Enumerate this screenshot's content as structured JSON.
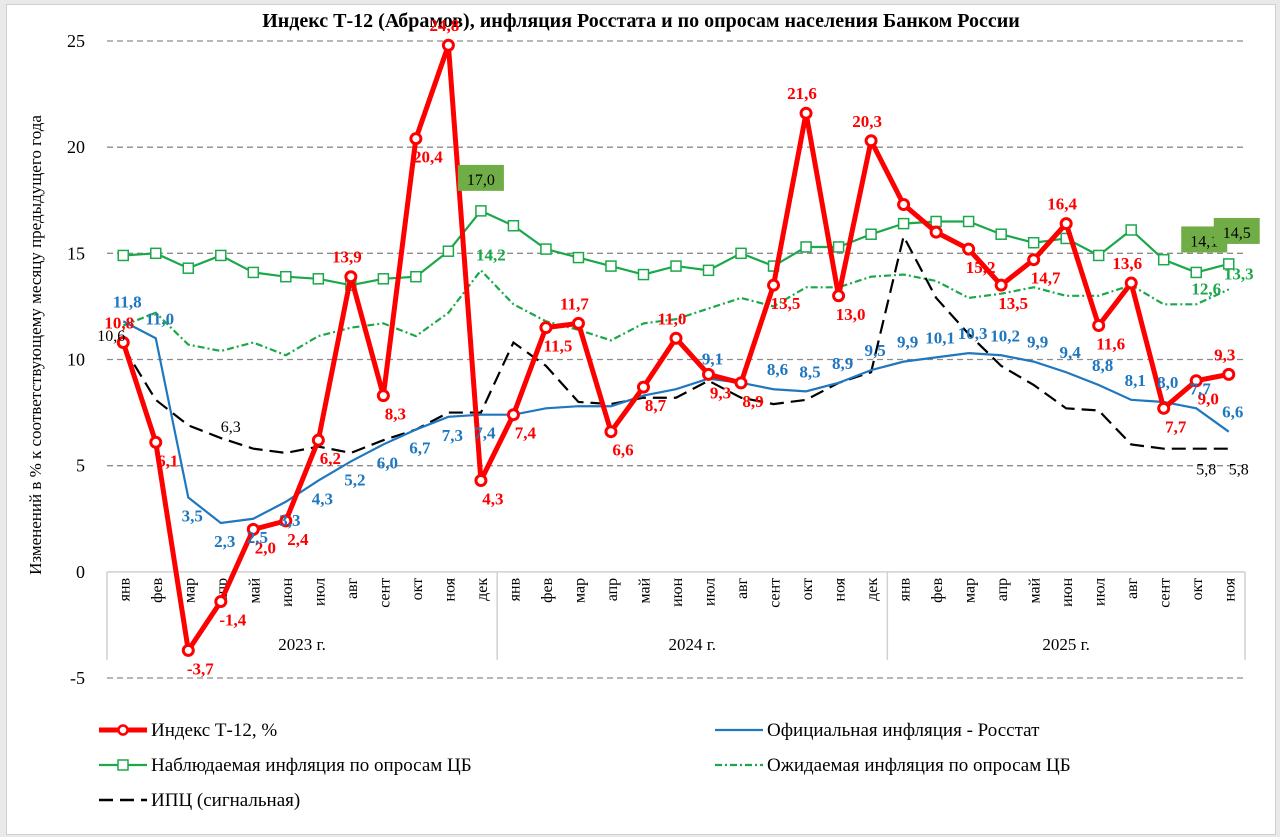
{
  "chart_data": {
    "type": "line",
    "title": "Индекс Т-12 (Абрамов), инфляция Росстата и по опросам населения Банком России",
    "ylabel": "Изменений в % к соответствующему месяцу предыдущего года",
    "xlabel": "",
    "ylim": [
      -5,
      25
    ],
    "yticks": [
      -5,
      0,
      5,
      10,
      15,
      20,
      25
    ],
    "grid": "horizontal-dashed",
    "legend_position": "bottom",
    "categories": [
      "янв",
      "фев",
      "мар",
      "апр",
      "май",
      "июн",
      "июл",
      "авг",
      "сент",
      "окт",
      "ноя",
      "дек",
      "янв",
      "фев",
      "мар",
      "апр",
      "май",
      "июн",
      "июл",
      "авг",
      "сент",
      "окт",
      "ноя",
      "дек",
      "янв",
      "фев",
      "мар",
      "апр",
      "май",
      "июн",
      "июл",
      "авг",
      "сент",
      "окт",
      "ноя"
    ],
    "year_groups": [
      {
        "label": "2023 г.",
        "count": 12
      },
      {
        "label": "2024 г.",
        "count": 12
      },
      {
        "label": "2025 г.",
        "count": 11
      }
    ],
    "series": [
      {
        "name": "Индекс Т-12, %",
        "color": "#ff0000",
        "style": "thick-line-circle-markers",
        "values": [
          10.8,
          6.1,
          -3.7,
          -1.4,
          2.0,
          2.4,
          6.2,
          13.9,
          8.3,
          20.4,
          24.8,
          4.3,
          7.4,
          11.5,
          11.7,
          6.6,
          8.7,
          11.0,
          9.3,
          8.9,
          13.5,
          21.6,
          13.0,
          20.3,
          17.3,
          16.0,
          15.2,
          13.5,
          14.7,
          16.4,
          11.6,
          13.6,
          7.7,
          9.0,
          9.3
        ],
        "labels": [
          "10,8",
          "6,1",
          "-3,7",
          "-1,4",
          "2,0",
          "2,4",
          "6,2",
          "13,9",
          "8,3",
          "20,4",
          "24,8",
          "4,3",
          "7,4",
          "11,5",
          "11,7",
          "6,6",
          "8,7",
          "11,0",
          "9,3",
          "8,9",
          "13,5",
          "21,6",
          "13,0",
          "20,3",
          "",
          "",
          "15,2",
          "13,5",
          "14,7",
          "16,4",
          "11,6",
          "13,6",
          "7,7",
          "9,0",
          "9,3"
        ]
      },
      {
        "name": "Официальная инфляция - Росстат",
        "color": "#1f77c0",
        "style": "thin-line",
        "values": [
          11.8,
          11.0,
          3.5,
          2.3,
          2.5,
          3.3,
          4.3,
          5.2,
          6.0,
          6.7,
          7.3,
          7.4,
          7.4,
          7.7,
          7.8,
          7.8,
          8.3,
          8.6,
          9.1,
          8.9,
          8.6,
          8.5,
          8.9,
          9.5,
          9.9,
          10.1,
          10.3,
          10.2,
          9.9,
          9.4,
          8.8,
          8.1,
          8.0,
          7.7,
          6.6
        ],
        "labels": [
          "11,8",
          "11,0",
          "3,5",
          "2,3",
          "2,5",
          "3,3",
          "4,3",
          "5,2",
          "6,0",
          "6,7",
          "7,3",
          "7,4",
          "",
          "",
          "",
          "",
          "",
          "",
          "9,1",
          "",
          "8,6",
          "8,5",
          "8,9",
          "9,5",
          "9,9",
          "10,1",
          "10,3",
          "10,2",
          "9,9",
          "9,4",
          "8,8",
          "8,1",
          "8,0",
          "7,7",
          "6,6"
        ]
      },
      {
        "name": "Наблюдаемая инфляция по опросам ЦБ",
        "color": "#1aa84a",
        "style": "line-square-markers",
        "values": [
          14.9,
          15.0,
          14.3,
          14.9,
          14.1,
          13.9,
          13.8,
          13.5,
          13.8,
          13.9,
          15.1,
          17.0,
          16.3,
          15.2,
          14.8,
          14.4,
          14.0,
          14.4,
          14.2,
          15.0,
          14.4,
          15.3,
          15.3,
          15.9,
          16.4,
          16.5,
          16.5,
          15.9,
          15.5,
          15.7,
          14.9,
          16.1,
          14.7,
          14.1,
          14.5
        ],
        "highlight_labels": [
          {
            "index": 11,
            "label": "17,0",
            "bg": "#70ad47"
          },
          {
            "index": 33,
            "label": "14,1",
            "bg": "#70ad47"
          },
          {
            "index": 34,
            "label": "14,5",
            "bg": "#70ad47"
          }
        ]
      },
      {
        "name": "Ожидаемая инфляция по опросам ЦБ",
        "color": "#1aa84a",
        "style": "dash-dot",
        "values": [
          11.6,
          12.2,
          10.7,
          10.4,
          10.8,
          10.2,
          11.1,
          11.5,
          11.7,
          11.1,
          12.2,
          14.2,
          12.6,
          11.8,
          11.4,
          10.9,
          11.7,
          11.9,
          12.4,
          12.9,
          12.5,
          13.4,
          13.4,
          13.9,
          14.0,
          13.7,
          12.9,
          13.1,
          13.4,
          13.0,
          13.0,
          13.5,
          12.6,
          12.6,
          13.3
        ],
        "labels": {
          "11": "14,2",
          "33": "12,6",
          "34": "13,3"
        }
      },
      {
        "name": "ИПЦ (сигнальная)",
        "color": "#000000",
        "style": "long-dash",
        "values": [
          10.6,
          8.1,
          6.9,
          6.3,
          5.8,
          5.6,
          5.9,
          5.6,
          6.2,
          6.7,
          7.5,
          7.5,
          10.8,
          9.7,
          8.0,
          7.9,
          8.2,
          8.2,
          9.0,
          8.2,
          7.9,
          8.1,
          8.9,
          9.4,
          15.8,
          12.9,
          11.2,
          9.7,
          8.8,
          7.7,
          7.6,
          6.0,
          5.8,
          5.8,
          5.8
        ],
        "labels": {
          "0": "10,6",
          "3": "6,3",
          "33": "5,8",
          "34": "5,8"
        }
      }
    ]
  },
  "legend": [
    {
      "label": "Индекс Т-12, %"
    },
    {
      "label": "Официальная инфляция - Росстат"
    },
    {
      "label": "Наблюдаемая  инфляция по опросам  ЦБ"
    },
    {
      "label": "Ожидаемая  инфляция по опросам  ЦБ"
    },
    {
      "label": "ИПЦ (сигнальная)"
    }
  ]
}
